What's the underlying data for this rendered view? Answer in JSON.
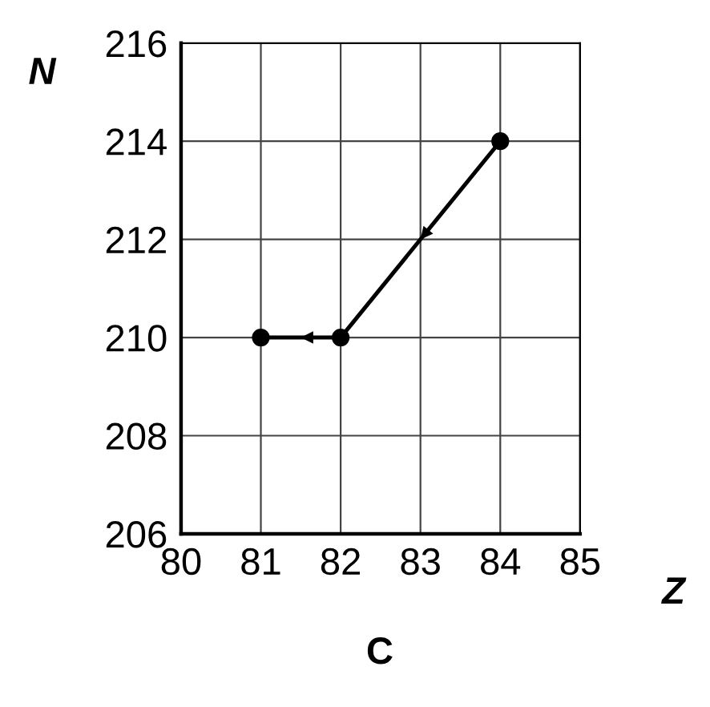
{
  "chart_data": {
    "type": "line",
    "xlabel": "Z",
    "ylabel": "N",
    "annotations": [
      "C"
    ],
    "x": [
      84,
      82,
      81
    ],
    "series": [
      {
        "color": "#000000",
        "values": [
          214,
          210,
          210
        ]
      }
    ],
    "xlim": [
      80,
      85
    ],
    "xticks": [
      80,
      81,
      82,
      83,
      84,
      85
    ],
    "ylim": [
      206,
      216
    ],
    "yticks": [
      206,
      208,
      210,
      212,
      214,
      216
    ],
    "grid": true,
    "marker": "circle",
    "line_style": "solid"
  }
}
